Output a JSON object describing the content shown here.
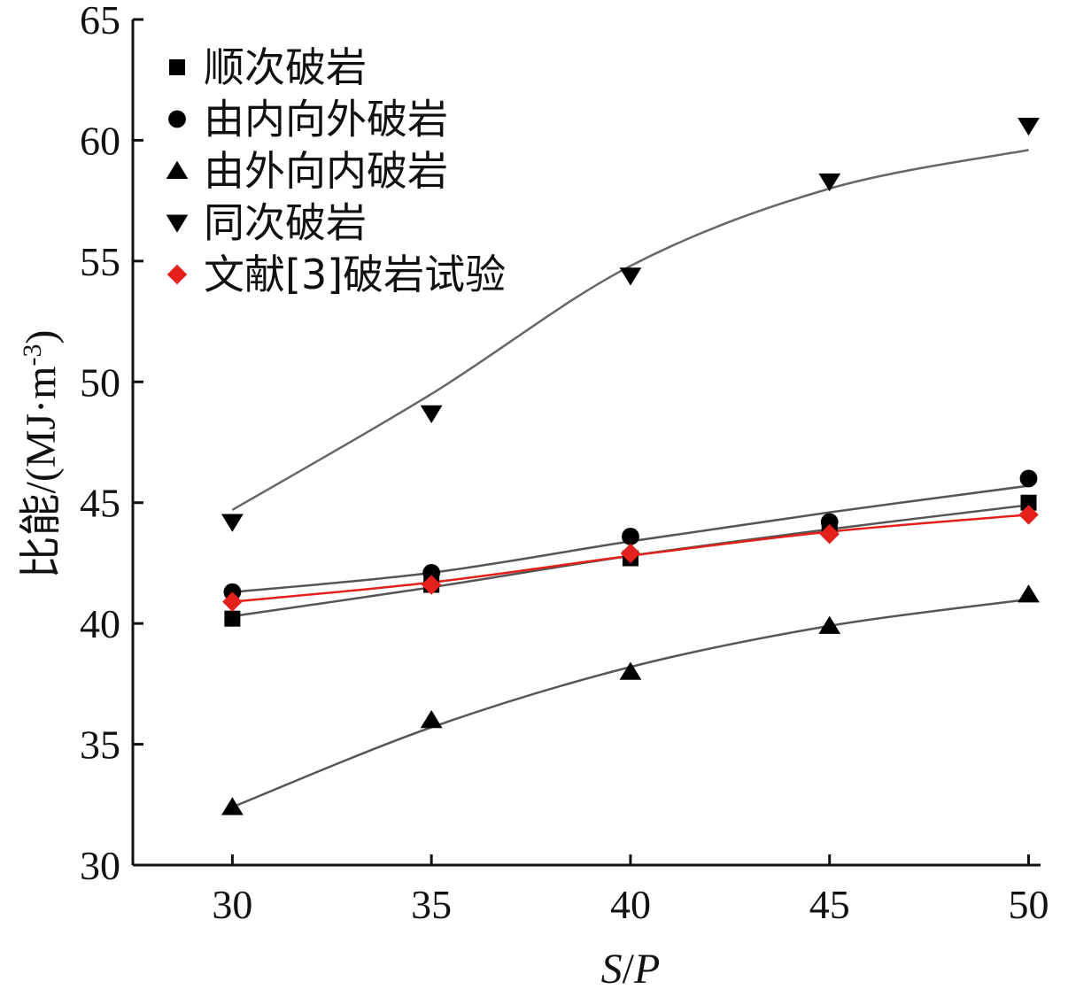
{
  "chart_data": {
    "type": "line",
    "x": [
      30,
      35,
      40,
      45,
      50
    ],
    "xlim": [
      27.5,
      50.3
    ],
    "ylim": [
      30,
      65
    ],
    "xticks": [
      30,
      35,
      40,
      45,
      50
    ],
    "yticks": [
      30,
      35,
      40,
      45,
      50,
      55,
      60,
      65
    ],
    "xlabel": {
      "italic_s": "S",
      "slash": "/",
      "italic_p": "P"
    },
    "ylabel": {
      "main": "比能/(MJ·m",
      "sup": "-3",
      "close": ")"
    },
    "grid": false,
    "legend_position": "top-left",
    "series": [
      {
        "name": "顺次破岩",
        "marker": "square",
        "color": "#000000",
        "fit_color": "#555555",
        "values": [
          40.2,
          41.6,
          42.7,
          44.0,
          45.0
        ],
        "fit": [
          40.3,
          41.5,
          42.8,
          43.9,
          44.9
        ]
      },
      {
        "name": "由内向外破岩",
        "marker": "circle",
        "color": "#000000",
        "fit_color": "#555555",
        "values": [
          41.3,
          42.1,
          43.6,
          44.2,
          46.0
        ],
        "fit": [
          41.3,
          42.1,
          43.4,
          44.6,
          45.7
        ]
      },
      {
        "name": "由外向内破岩",
        "marker": "triangle-up",
        "color": "#000000",
        "fit_color": "#555555",
        "values": [
          32.4,
          36.0,
          38.0,
          39.9,
          41.2
        ],
        "fit": [
          32.4,
          35.7,
          38.2,
          39.9,
          41.0
        ]
      },
      {
        "name": "同次破岩",
        "marker": "triangle-down",
        "color": "#000000",
        "fit_color": "#666666",
        "values": [
          44.2,
          48.7,
          54.4,
          58.3,
          60.6
        ],
        "fit": [
          44.7,
          49.5,
          54.8,
          58.0,
          59.6
        ]
      },
      {
        "name": "文献[3]破岩试验",
        "marker": "diamond",
        "color": "#e3201b",
        "fit_color": "#e3201b",
        "values": [
          40.9,
          41.6,
          42.9,
          43.7,
          44.5
        ],
        "fit": [
          40.9,
          41.7,
          42.8,
          43.8,
          44.5
        ]
      }
    ]
  }
}
